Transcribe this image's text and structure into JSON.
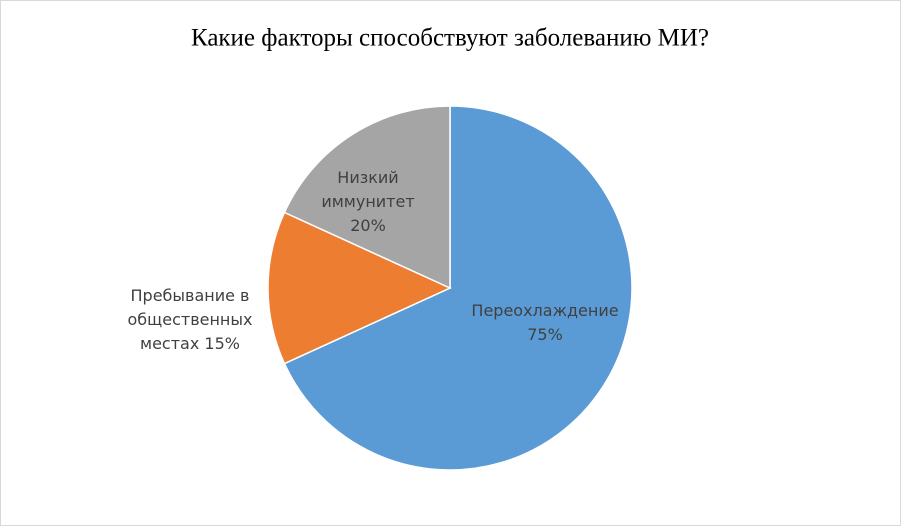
{
  "chart_data": {
    "type": "pie",
    "title": "Какие факторы способствуют заболеванию МИ?",
    "categories": [
      "Переохлаждение",
      "Пребывание в общественных местах",
      "Низкий иммунитет"
    ],
    "values": [
      75,
      15,
      20
    ],
    "value_labels": [
      "75%",
      "15%",
      "20%"
    ],
    "colors": [
      "#5b9bd5",
      "#ed7d31",
      "#a5a5a5"
    ]
  }
}
